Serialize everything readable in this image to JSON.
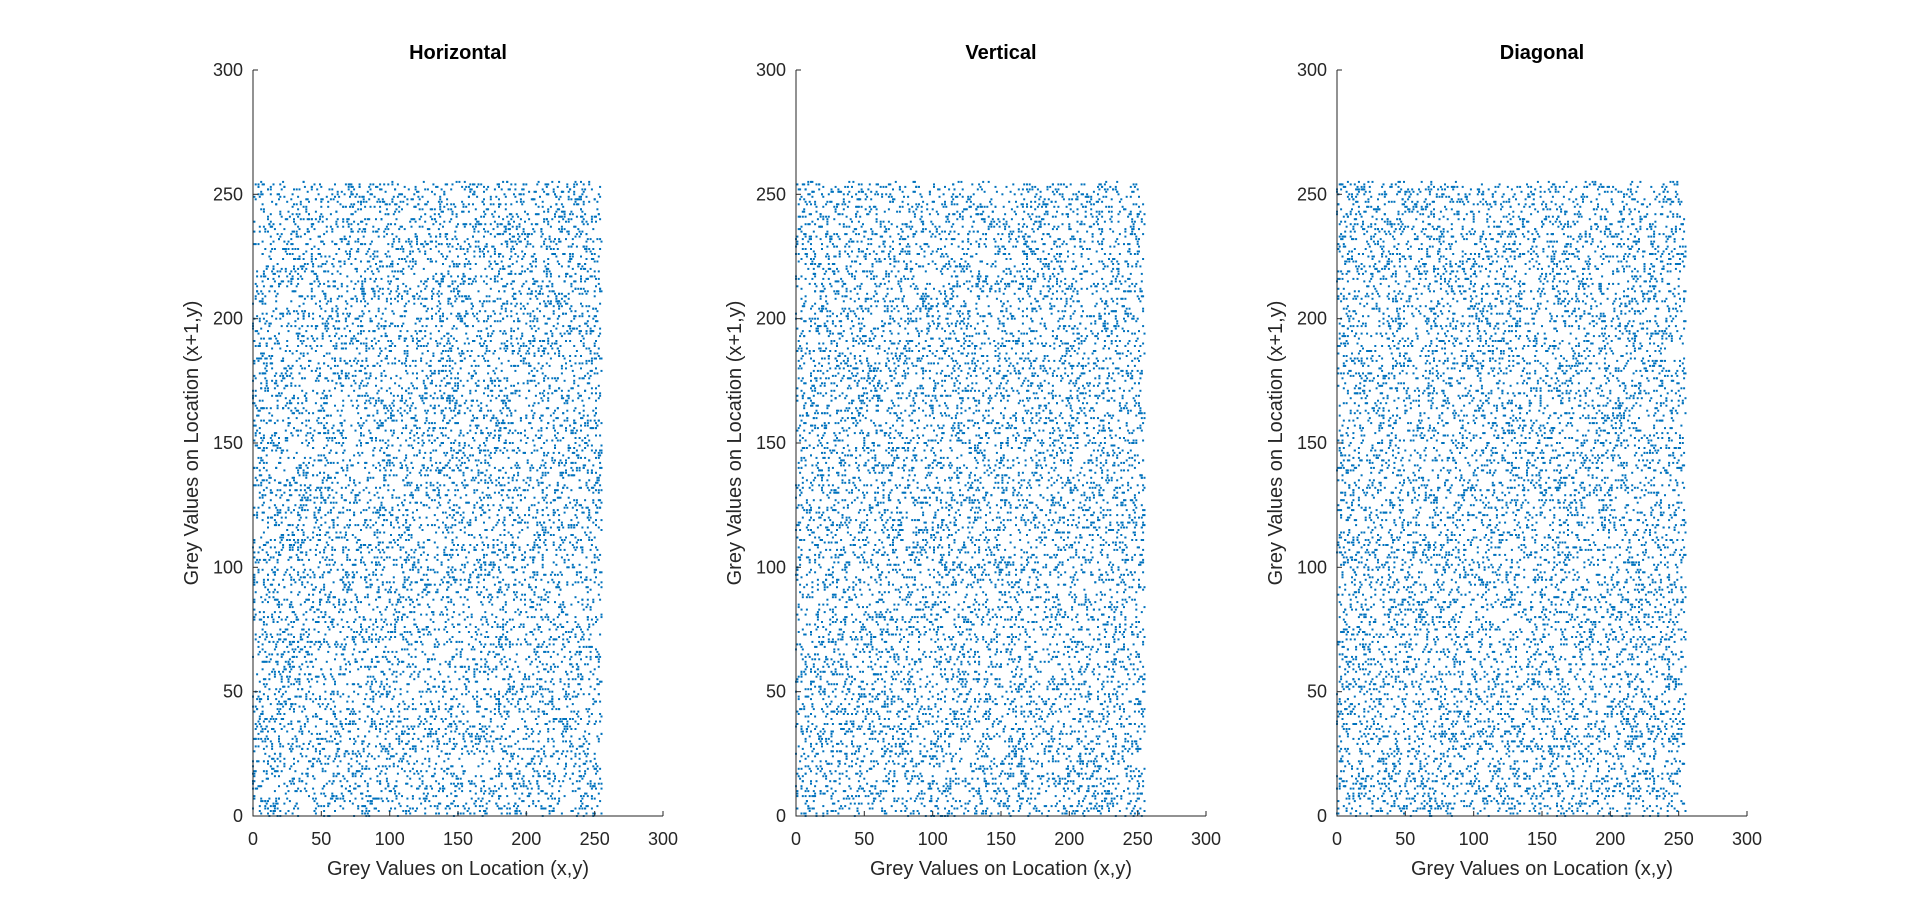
{
  "chart_data": [
    {
      "type": "scatter",
      "title": "Horizontal",
      "xlabel": "Grey Values on Location (x,y)",
      "ylabel": "Grey Values on Location (x+1,y)",
      "xlim": [
        0,
        300
      ],
      "ylim": [
        0,
        300
      ],
      "xticks": [
        "0",
        "50",
        "100",
        "150",
        "200",
        "250",
        "300"
      ],
      "yticks": [
        "0",
        "50",
        "100",
        "150",
        "200",
        "250",
        "300"
      ],
      "grid": false,
      "color": "#0072BD",
      "data_description": "uniformly scattered points covering grey values 0 to 255 on both axes",
      "x_range": [
        0,
        255
      ],
      "y_range": [
        0,
        255
      ],
      "point_count": 9000,
      "seed": 11
    },
    {
      "type": "scatter",
      "title": "Vertical",
      "xlabel": "Grey Values on Location (x,y)",
      "ylabel": "Grey Values on Location (x+1,y)",
      "xlim": [
        0,
        300
      ],
      "ylim": [
        0,
        300
      ],
      "xticks": [
        "0",
        "50",
        "100",
        "150",
        "200",
        "250",
        "300"
      ],
      "yticks": [
        "0",
        "50",
        "100",
        "150",
        "200",
        "250",
        "300"
      ],
      "grid": false,
      "color": "#0072BD",
      "data_description": "uniformly scattered points covering grey values 0 to 255 on both axes",
      "x_range": [
        0,
        255
      ],
      "y_range": [
        0,
        255
      ],
      "point_count": 9000,
      "seed": 23
    },
    {
      "type": "scatter",
      "title": "Diagonal",
      "xlabel": "Grey Values on Location (x,y)",
      "ylabel": "Grey Values on Location (x+1,y)",
      "xlim": [
        0,
        300
      ],
      "ylim": [
        0,
        300
      ],
      "xticks": [
        "0",
        "50",
        "100",
        "150",
        "200",
        "250",
        "300"
      ],
      "yticks": [
        "0",
        "50",
        "100",
        "150",
        "200",
        "250",
        "300"
      ],
      "grid": false,
      "color": "#0072BD",
      "data_description": "uniformly scattered points covering grey values 0 to 255 on both axes",
      "x_range": [
        0,
        255
      ],
      "y_range": [
        0,
        255
      ],
      "point_count": 9000,
      "seed": 37
    }
  ]
}
